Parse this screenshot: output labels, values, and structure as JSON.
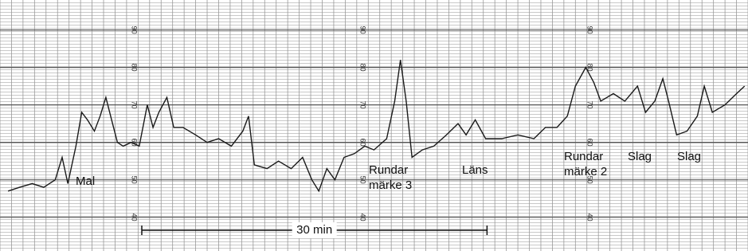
{
  "chart_data": {
    "type": "line",
    "x": [
      0.7,
      1.7,
      2.8,
      3.8,
      4.8,
      5.4,
      5.9,
      6.6,
      7.1,
      7.6,
      8.2,
      8.7,
      9.2,
      9.7,
      10.2,
      10.7,
      11.4,
      12.1,
      12.8,
      13.3,
      13.8,
      14.5,
      15.1,
      15.9,
      17.0,
      18.0,
      19.0,
      20.1,
      21.1,
      21.6,
      22.1,
      23.2,
      24.2,
      25.3,
      26.3,
      27.1,
      27.7,
      28.4,
      29.1,
      29.9,
      30.8,
      31.7,
      32.5,
      33.6,
      34.3,
      34.8,
      35.3,
      35.8,
      36.7,
      37.7,
      38.8,
      39.8,
      40.5,
      41.3,
      42.2,
      43.6,
      45.0,
      46.4,
      47.4,
      48.4,
      49.3,
      50.0,
      50.9,
      51.6,
      52.2,
      53.3,
      54.3,
      55.4,
      56.1,
      56.9,
      57.6,
      58.1,
      58.8,
      59.7,
      60.6,
      61.2,
      61.9,
      63.0,
      64.0,
      64.7
    ],
    "values": [
      47,
      48,
      49,
      48,
      50,
      56,
      49,
      59,
      68,
      66,
      63,
      67,
      72,
      66,
      60,
      59,
      60,
      59,
      70,
      64,
      68,
      72,
      64,
      64,
      62,
      60,
      61,
      59,
      63,
      67,
      54,
      53,
      55,
      53,
      56,
      50,
      47,
      53,
      50,
      56,
      57,
      59,
      58,
      61,
      71,
      82,
      71,
      56,
      58,
      59,
      62,
      65,
      62,
      66,
      61,
      61,
      62,
      61,
      64,
      64,
      67,
      75,
      80,
      76,
      71,
      73,
      71,
      75,
      68,
      71,
      77,
      71,
      62,
      63,
      67,
      75,
      68,
      70,
      73,
      75
    ],
    "color": "#1a1a1a",
    "xlim": [
      0,
      65
    ],
    "ylim": [
      31,
      98
    ],
    "yticks": [
      40,
      50,
      60,
      70,
      80,
      90
    ],
    "grid": true,
    "annotations": [
      [
        "Mal"
      ],
      [
        "Rundar",
        "märke 3"
      ],
      [
        "Läns"
      ],
      [
        "Rundar",
        "märke 2"
      ],
      [
        "Slag"
      ],
      [
        "Slag"
      ]
    ],
    "scale_bar": {
      "label": "30 min",
      "length": 30
    }
  }
}
